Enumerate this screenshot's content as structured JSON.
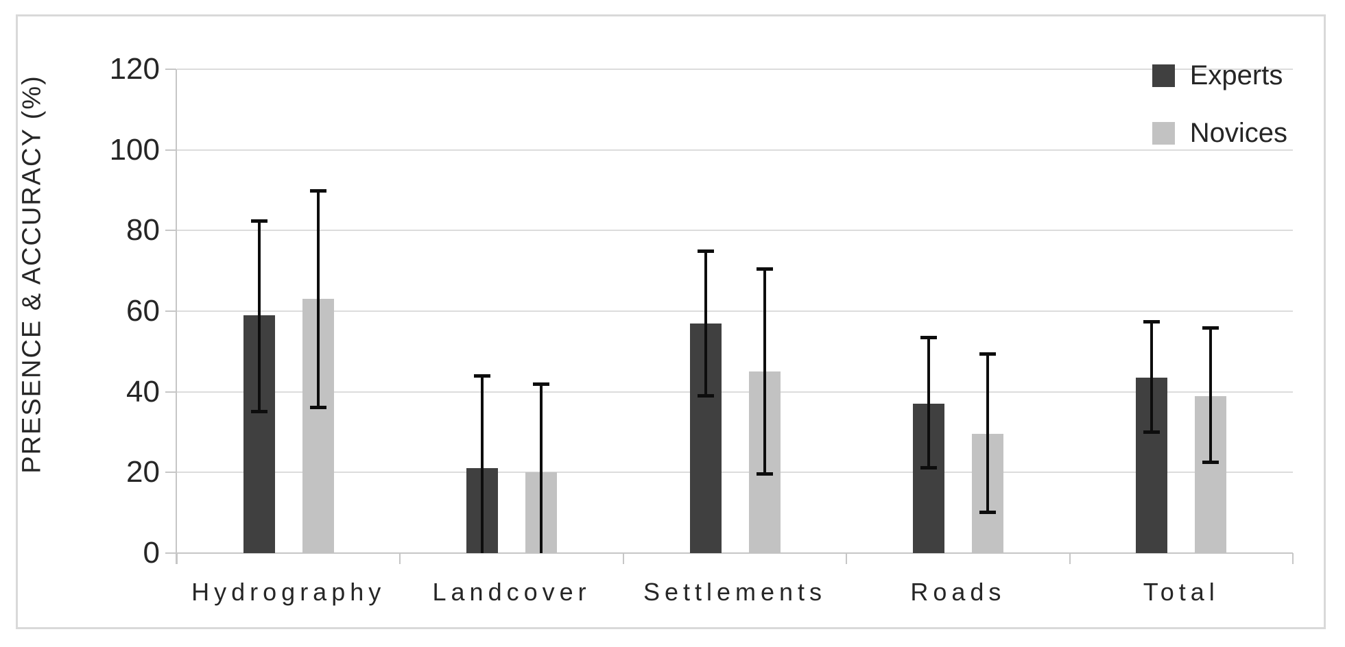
{
  "chart_data": {
    "type": "bar",
    "title": "",
    "xlabel": "",
    "ylabel": "PRESENCE & ACCURACY (%)",
    "ylim": [
      0,
      120
    ],
    "ytick_step": 20,
    "ytick_labels": [
      120,
      100,
      80,
      60,
      40,
      20,
      0
    ],
    "grid": true,
    "error_bars": true,
    "legend_position": "top-right",
    "categories": [
      "Hydrography",
      "Landcover",
      "Settlements",
      "Roads",
      "Total"
    ],
    "series": [
      {
        "name": "Experts",
        "color": "#404040",
        "values": [
          59,
          21,
          57,
          37,
          43.5
        ],
        "error_low": [
          35,
          0,
          39,
          21,
          30
        ],
        "error_high": [
          82.5,
          44,
          75,
          53.5,
          57.5
        ]
      },
      {
        "name": "Novices",
        "color": "#c2c2c2",
        "values": [
          63,
          20,
          45,
          29.5,
          39
        ],
        "error_low": [
          36,
          0,
          19.5,
          10,
          22.5
        ],
        "error_high": [
          90,
          42,
          70.5,
          49.5,
          56
        ]
      }
    ]
  },
  "colors": {
    "experts_bar": "#404040",
    "novices_bar": "#c2c2c2",
    "gridline": "#dcdcdc",
    "axis_line": "#c6c6c6",
    "error_bar": "#0d0d0d",
    "text": "#262626",
    "frame_border": "#d9d9d9",
    "background": "#ffffff"
  }
}
